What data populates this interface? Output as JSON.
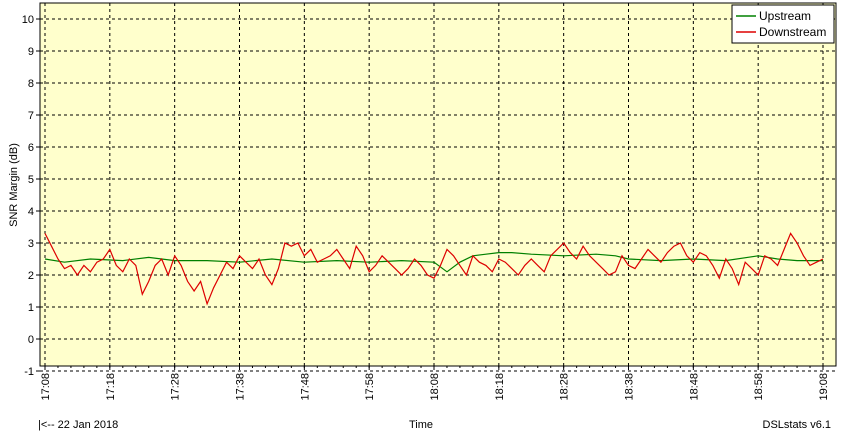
{
  "chart_data": {
    "type": "line",
    "xlabel": "Time",
    "ylabel": "SNR Margin (dB)",
    "ylim": [
      -1,
      10.5
    ],
    "y_ticks": [
      -1,
      0,
      1,
      2,
      3,
      4,
      5,
      6,
      7,
      8,
      9,
      10
    ],
    "x_range_minutes": [
      0,
      120
    ],
    "x_ticks": [
      "17:08",
      "17:18",
      "17:28",
      "17:38",
      "17:48",
      "17:58",
      "18:08",
      "18:18",
      "18:28",
      "18:38",
      "18:48",
      "18:58",
      "19:08"
    ],
    "grid": true,
    "legend_position": "top-right",
    "series": [
      {
        "name": "Upstream",
        "color": "#008000",
        "x": [
          0,
          3,
          7,
          12,
          16,
          20,
          25,
          30,
          35,
          40,
          45,
          50,
          55,
          60,
          62,
          64,
          66,
          68,
          70,
          72,
          75,
          80,
          85,
          88,
          90,
          95,
          100,
          105,
          110,
          113,
          116,
          120
        ],
        "y": [
          2.5,
          2.4,
          2.5,
          2.45,
          2.55,
          2.45,
          2.45,
          2.4,
          2.5,
          2.4,
          2.45,
          2.4,
          2.45,
          2.4,
          2.1,
          2.4,
          2.6,
          2.65,
          2.7,
          2.7,
          2.65,
          2.6,
          2.65,
          2.6,
          2.5,
          2.45,
          2.5,
          2.45,
          2.6,
          2.5,
          2.45,
          2.45
        ]
      },
      {
        "name": "Downstream",
        "color": "#dd0000",
        "x": [
          0,
          1,
          2,
          3,
          4,
          5,
          6,
          7,
          8,
          9,
          10,
          11,
          12,
          13,
          14,
          15,
          16,
          17,
          18,
          19,
          20,
          21,
          22,
          23,
          24,
          25,
          26,
          27,
          28,
          29,
          30,
          31,
          32,
          33,
          34,
          35,
          36,
          37,
          38,
          39,
          40,
          41,
          42,
          43,
          44,
          45,
          46,
          47,
          48,
          49,
          50,
          51,
          52,
          53,
          54,
          55,
          56,
          57,
          58,
          59,
          60,
          61,
          62,
          63,
          64,
          65,
          66,
          67,
          68,
          69,
          70,
          71,
          72,
          73,
          74,
          75,
          76,
          77,
          78,
          79,
          80,
          81,
          82,
          83,
          84,
          85,
          86,
          87,
          88,
          89,
          90,
          91,
          92,
          93,
          94,
          95,
          96,
          97,
          98,
          99,
          100,
          101,
          102,
          103,
          104,
          105,
          106,
          107,
          108,
          109,
          110,
          111,
          112,
          113,
          114,
          115,
          116,
          117,
          118,
          119,
          120
        ],
        "y": [
          3.3,
          2.9,
          2.5,
          2.2,
          2.3,
          2.0,
          2.3,
          2.1,
          2.4,
          2.5,
          2.8,
          2.3,
          2.1,
          2.5,
          2.3,
          1.4,
          1.8,
          2.3,
          2.5,
          2.0,
          2.6,
          2.3,
          1.8,
          1.5,
          1.8,
          1.1,
          1.6,
          2.0,
          2.4,
          2.2,
          2.6,
          2.4,
          2.2,
          2.5,
          2.0,
          1.7,
          2.2,
          3.0,
          2.9,
          3.0,
          2.6,
          2.8,
          2.4,
          2.5,
          2.6,
          2.8,
          2.5,
          2.2,
          2.9,
          2.6,
          2.1,
          2.3,
          2.6,
          2.4,
          2.2,
          2.0,
          2.2,
          2.5,
          2.3,
          2.0,
          1.9,
          2.3,
          2.8,
          2.6,
          2.3,
          2.0,
          2.6,
          2.4,
          2.3,
          2.1,
          2.5,
          2.4,
          2.2,
          2.0,
          2.3,
          2.5,
          2.3,
          2.1,
          2.6,
          2.8,
          3.0,
          2.7,
          2.5,
          2.9,
          2.6,
          2.4,
          2.2,
          2.0,
          2.1,
          2.6,
          2.3,
          2.2,
          2.5,
          2.8,
          2.6,
          2.4,
          2.7,
          2.9,
          3.0,
          2.6,
          2.4,
          2.7,
          2.6,
          2.3,
          1.9,
          2.5,
          2.2,
          1.7,
          2.4,
          2.2,
          2.0,
          2.6,
          2.5,
          2.3,
          2.8,
          3.3,
          3.0,
          2.6,
          2.3,
          2.4,
          2.5
        ]
      }
    ]
  },
  "footer": {
    "left": "|<-- 22 Jan 2018",
    "center": "Time",
    "right": "DSLstats v6.1"
  },
  "colors": {
    "plot_background": "#ffffcc",
    "grid": "#000000"
  }
}
